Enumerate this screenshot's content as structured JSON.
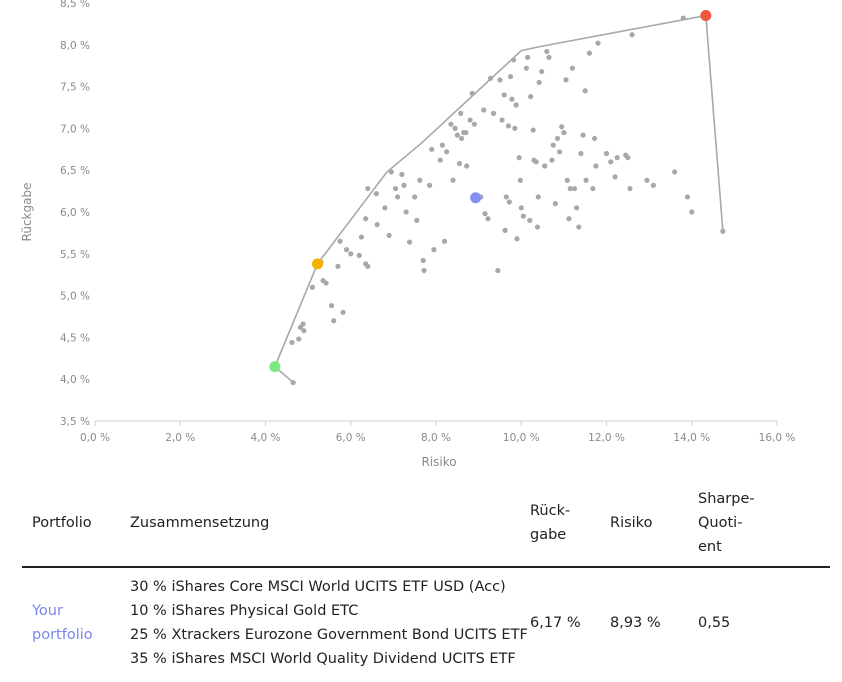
{
  "chart_data": {
    "type": "scatter",
    "xlabel": "Risiko",
    "ylabel": "Rückgabe",
    "xlim": [
      0,
      16
    ],
    "ylim": [
      3.5,
      8.5
    ],
    "x_ticks": [
      {
        "value": 0,
        "label": "0,0 %"
      },
      {
        "value": 2,
        "label": "2,0 %"
      },
      {
        "value": 4,
        "label": "4,0 %"
      },
      {
        "value": 6,
        "label": "6,0 %"
      },
      {
        "value": 8,
        "label": "8,0 %"
      },
      {
        "value": 10,
        "label": "10,0 %"
      },
      {
        "value": 12,
        "label": "12,0 %"
      },
      {
        "value": 14,
        "label": "14,0 %"
      },
      {
        "value": 16,
        "label": "16,0 %"
      }
    ],
    "y_ticks": [
      {
        "value": 3.5,
        "label": "3,5 %"
      },
      {
        "value": 4.0,
        "label": "4,0 %"
      },
      {
        "value": 4.5,
        "label": "4,5 %"
      },
      {
        "value": 5.0,
        "label": "5,0 %"
      },
      {
        "value": 5.5,
        "label": "5,5 %"
      },
      {
        "value": 6.0,
        "label": "6,0 %"
      },
      {
        "value": 6.5,
        "label": "6,5 %"
      },
      {
        "value": 7.0,
        "label": "7,0 %"
      },
      {
        "value": 7.5,
        "label": "7,5 %"
      },
      {
        "value": 8.0,
        "label": "8,0 %"
      },
      {
        "value": 8.5,
        "label": "8,5 %"
      }
    ],
    "frontier": [
      {
        "x": 4.65,
        "y": 3.96
      },
      {
        "x": 4.22,
        "y": 4.15
      },
      {
        "x": 5.22,
        "y": 5.38
      },
      {
        "x": 6.85,
        "y": 6.48
      },
      {
        "x": 7.65,
        "y": 6.82
      },
      {
        "x": 10.0,
        "y": 7.93
      },
      {
        "x": 10.45,
        "y": 7.98
      },
      {
        "x": 14.33,
        "y": 8.35
      },
      {
        "x": 14.73,
        "y": 5.77
      }
    ],
    "points": [
      {
        "x": 4.65,
        "y": 3.96
      },
      {
        "x": 4.62,
        "y": 4.44
      },
      {
        "x": 4.78,
        "y": 4.48
      },
      {
        "x": 4.82,
        "y": 4.62
      },
      {
        "x": 4.9,
        "y": 4.58
      },
      {
        "x": 4.88,
        "y": 4.66
      },
      {
        "x": 5.1,
        "y": 5.1
      },
      {
        "x": 5.3,
        "y": 5.4
      },
      {
        "x": 5.35,
        "y": 5.18
      },
      {
        "x": 5.42,
        "y": 5.15
      },
      {
        "x": 5.55,
        "y": 4.88
      },
      {
        "x": 5.6,
        "y": 4.7
      },
      {
        "x": 5.82,
        "y": 4.8
      },
      {
        "x": 5.7,
        "y": 5.35
      },
      {
        "x": 5.75,
        "y": 5.65
      },
      {
        "x": 5.9,
        "y": 5.55
      },
      {
        "x": 6.0,
        "y": 5.5
      },
      {
        "x": 6.2,
        "y": 5.48
      },
      {
        "x": 6.25,
        "y": 5.7
      },
      {
        "x": 6.35,
        "y": 5.38
      },
      {
        "x": 6.4,
        "y": 5.35
      },
      {
        "x": 6.35,
        "y": 5.92
      },
      {
        "x": 6.4,
        "y": 6.28
      },
      {
        "x": 6.6,
        "y": 6.22
      },
      {
        "x": 6.62,
        "y": 5.85
      },
      {
        "x": 6.8,
        "y": 6.05
      },
      {
        "x": 6.9,
        "y": 5.72
      },
      {
        "x": 6.95,
        "y": 6.48
      },
      {
        "x": 7.05,
        "y": 6.28
      },
      {
        "x": 7.1,
        "y": 6.18
      },
      {
        "x": 7.2,
        "y": 6.45
      },
      {
        "x": 7.25,
        "y": 6.32
      },
      {
        "x": 7.3,
        "y": 6.0
      },
      {
        "x": 7.38,
        "y": 5.64
      },
      {
        "x": 7.5,
        "y": 6.18
      },
      {
        "x": 7.55,
        "y": 5.9
      },
      {
        "x": 7.62,
        "y": 6.38
      },
      {
        "x": 7.7,
        "y": 5.42
      },
      {
        "x": 7.72,
        "y": 5.3
      },
      {
        "x": 7.85,
        "y": 6.32
      },
      {
        "x": 7.9,
        "y": 6.75
      },
      {
        "x": 7.95,
        "y": 5.55
      },
      {
        "x": 8.1,
        "y": 6.62
      },
      {
        "x": 8.15,
        "y": 6.8
      },
      {
        "x": 8.2,
        "y": 5.65
      },
      {
        "x": 8.25,
        "y": 6.72
      },
      {
        "x": 8.35,
        "y": 7.05
      },
      {
        "x": 8.4,
        "y": 6.38
      },
      {
        "x": 8.45,
        "y": 7.0
      },
      {
        "x": 8.5,
        "y": 6.92
      },
      {
        "x": 8.55,
        "y": 6.58
      },
      {
        "x": 8.58,
        "y": 7.18
      },
      {
        "x": 8.6,
        "y": 6.88
      },
      {
        "x": 8.65,
        "y": 6.95
      },
      {
        "x": 8.7,
        "y": 6.95
      },
      {
        "x": 8.72,
        "y": 6.55
      },
      {
        "x": 8.8,
        "y": 7.1
      },
      {
        "x": 8.85,
        "y": 7.42
      },
      {
        "x": 8.9,
        "y": 7.05
      },
      {
        "x": 9.05,
        "y": 6.18
      },
      {
        "x": 9.12,
        "y": 7.22
      },
      {
        "x": 9.15,
        "y": 5.98
      },
      {
        "x": 9.22,
        "y": 5.92
      },
      {
        "x": 9.28,
        "y": 7.6
      },
      {
        "x": 9.35,
        "y": 7.18
      },
      {
        "x": 9.45,
        "y": 5.3
      },
      {
        "x": 9.5,
        "y": 7.58
      },
      {
        "x": 9.55,
        "y": 7.1
      },
      {
        "x": 9.6,
        "y": 7.4
      },
      {
        "x": 9.62,
        "y": 5.78
      },
      {
        "x": 9.65,
        "y": 6.18
      },
      {
        "x": 9.7,
        "y": 7.03
      },
      {
        "x": 9.72,
        "y": 6.12
      },
      {
        "x": 9.75,
        "y": 7.62
      },
      {
        "x": 9.78,
        "y": 7.35
      },
      {
        "x": 9.82,
        "y": 7.82
      },
      {
        "x": 9.85,
        "y": 7.0
      },
      {
        "x": 9.88,
        "y": 7.28
      },
      {
        "x": 9.9,
        "y": 5.68
      },
      {
        "x": 9.95,
        "y": 6.65
      },
      {
        "x": 9.98,
        "y": 6.38
      },
      {
        "x": 10.0,
        "y": 6.05
      },
      {
        "x": 10.05,
        "y": 5.95
      },
      {
        "x": 10.12,
        "y": 7.72
      },
      {
        "x": 10.15,
        "y": 7.85
      },
      {
        "x": 10.2,
        "y": 5.9
      },
      {
        "x": 10.22,
        "y": 7.38
      },
      {
        "x": 10.28,
        "y": 6.98
      },
      {
        "x": 10.3,
        "y": 6.62
      },
      {
        "x": 10.35,
        "y": 6.6
      },
      {
        "x": 10.38,
        "y": 5.82
      },
      {
        "x": 10.4,
        "y": 6.18
      },
      {
        "x": 10.42,
        "y": 7.55
      },
      {
        "x": 10.48,
        "y": 7.68
      },
      {
        "x": 10.55,
        "y": 6.55
      },
      {
        "x": 10.6,
        "y": 7.92
      },
      {
        "x": 10.65,
        "y": 7.85
      },
      {
        "x": 10.72,
        "y": 6.62
      },
      {
        "x": 10.75,
        "y": 6.8
      },
      {
        "x": 10.8,
        "y": 6.1
      },
      {
        "x": 10.85,
        "y": 6.88
      },
      {
        "x": 10.9,
        "y": 6.72
      },
      {
        "x": 10.95,
        "y": 7.02
      },
      {
        "x": 11.0,
        "y": 6.95
      },
      {
        "x": 11.05,
        "y": 7.58
      },
      {
        "x": 11.08,
        "y": 6.38
      },
      {
        "x": 11.12,
        "y": 5.92
      },
      {
        "x": 11.15,
        "y": 6.28
      },
      {
        "x": 11.2,
        "y": 7.72
      },
      {
        "x": 11.25,
        "y": 6.28
      },
      {
        "x": 11.3,
        "y": 6.05
      },
      {
        "x": 11.35,
        "y": 5.82
      },
      {
        "x": 11.4,
        "y": 6.7
      },
      {
        "x": 11.45,
        "y": 6.92
      },
      {
        "x": 11.5,
        "y": 7.45
      },
      {
        "x": 11.52,
        "y": 6.38
      },
      {
        "x": 11.6,
        "y": 7.9
      },
      {
        "x": 11.68,
        "y": 6.28
      },
      {
        "x": 11.72,
        "y": 6.88
      },
      {
        "x": 11.75,
        "y": 6.55
      },
      {
        "x": 11.8,
        "y": 8.02
      },
      {
        "x": 12.0,
        "y": 6.7
      },
      {
        "x": 12.1,
        "y": 6.6
      },
      {
        "x": 12.2,
        "y": 6.42
      },
      {
        "x": 12.25,
        "y": 6.65
      },
      {
        "x": 12.45,
        "y": 6.68
      },
      {
        "x": 12.5,
        "y": 6.65
      },
      {
        "x": 12.55,
        "y": 6.28
      },
      {
        "x": 12.6,
        "y": 8.12
      },
      {
        "x": 12.95,
        "y": 6.38
      },
      {
        "x": 13.1,
        "y": 6.32
      },
      {
        "x": 13.6,
        "y": 6.48
      },
      {
        "x": 13.9,
        "y": 6.18
      },
      {
        "x": 14.0,
        "y": 6.0
      },
      {
        "x": 13.8,
        "y": 8.32
      },
      {
        "x": 14.73,
        "y": 5.77
      }
    ],
    "highlights": [
      {
        "x": 4.22,
        "y": 4.15,
        "color": "#7be884"
      },
      {
        "x": 5.22,
        "y": 5.38,
        "color": "#f2b100"
      },
      {
        "x": 8.93,
        "y": 6.17,
        "color": "#8491f0"
      },
      {
        "x": 14.33,
        "y": 8.35,
        "color": "#f0573a"
      }
    ],
    "point_color": "#a8a8a8",
    "line_color": "#a8a8a8"
  },
  "table": {
    "headers": {
      "portfolio": "Portfolio",
      "composition": "Zusammensetzung",
      "return_l1": "Rück-",
      "return_l2": "gabe",
      "risk": "Risiko",
      "sharpe_l1": "Sharpe-",
      "sharpe_l2": "Quoti-",
      "sharpe_l3": "ent"
    },
    "row": {
      "portfolio_l1": "Your",
      "portfolio_l2": "portfolio",
      "composition": [
        "30 % iShares Core MSCI World UCITS ETF USD (Acc)",
        "10 % iShares Physical Gold ETC",
        "25 % Xtrackers Eurozone Government Bond UCITS ETF",
        "35 % iShares MSCI World Quality Dividend UCITS ETF"
      ],
      "return": "6,17 %",
      "risk": "8,93 %",
      "sharpe": "0,55"
    }
  }
}
